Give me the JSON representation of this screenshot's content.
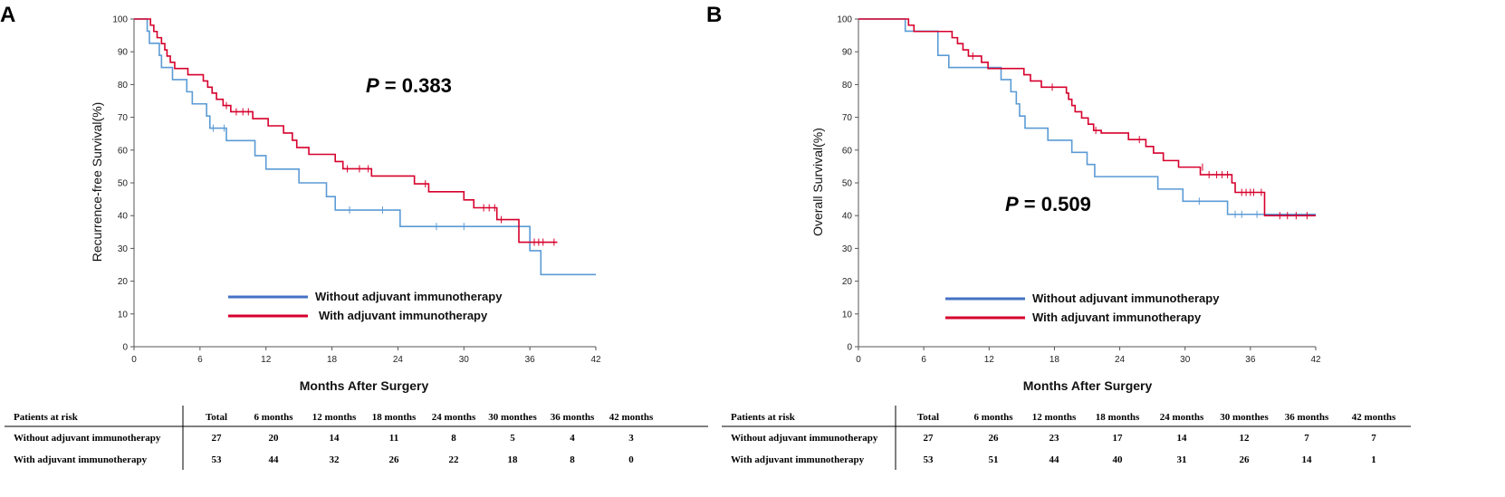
{
  "chart_data": [
    {
      "type": "line",
      "panel_label": "A",
      "title": "",
      "ylabel": "Recurrence-free Survival(%)",
      "xlabel": "Months After Surgery",
      "xlim": [
        0,
        42
      ],
      "ylim": [
        0,
        100
      ],
      "xticks": [
        "0",
        "6",
        "12",
        "18",
        "24",
        "30",
        "36",
        "42"
      ],
      "yticks": [
        "0",
        "10",
        "20",
        "30",
        "40",
        "50",
        "60",
        "70",
        "80",
        "90",
        "100"
      ],
      "annotation": {
        "italic": "P",
        "text": " = 0.383"
      },
      "legend": [
        "Without adjuvant immunotherapy",
        "With adjuvant immunotherapy"
      ],
      "series": [
        {
          "name": "Without adjuvant immunotherapy",
          "color": "#5b9bd5",
          "steps": [
            [
              0,
              100
            ],
            [
              1.2,
              96.3
            ],
            [
              1.4,
              92.6
            ],
            [
              2.3,
              88.9
            ],
            [
              2.5,
              85.2
            ],
            [
              3.5,
              81.5
            ],
            [
              4.8,
              77.8
            ],
            [
              5.3,
              74.1
            ],
            [
              6.6,
              70.4
            ],
            [
              6.9,
              66.7
            ],
            [
              8.4,
              62.9
            ],
            [
              11,
              58.3
            ],
            [
              12,
              54.2
            ],
            [
              15,
              50
            ],
            [
              17.5,
              45.8
            ],
            [
              18.3,
              41.7
            ],
            [
              24.2,
              36.7
            ],
            [
              36,
              29.3
            ],
            [
              37,
              22
            ]
          ],
          "end": 42,
          "censors": [
            [
              7.2,
              66.7
            ],
            [
              8.2,
              66.7
            ],
            [
              19.6,
              41.7
            ],
            [
              22.6,
              41.7
            ],
            [
              27.5,
              36.7
            ],
            [
              30,
              36.7
            ]
          ]
        },
        {
          "name": "With adjuvant immunotherapy",
          "color": "#d6002c",
          "steps": [
            [
              0,
              100
            ],
            [
              1.5,
              98.1
            ],
            [
              1.8,
              96.2
            ],
            [
              2.1,
              94.3
            ],
            [
              2.5,
              92.5
            ],
            [
              2.8,
              90.6
            ],
            [
              3,
              88.7
            ],
            [
              3.3,
              86.8
            ],
            [
              3.7,
              84.9
            ],
            [
              4.9,
              83
            ],
            [
              6.3,
              81.1
            ],
            [
              6.7,
              79.2
            ],
            [
              7.1,
              77.4
            ],
            [
              7.5,
              75.5
            ],
            [
              8.1,
              73.6
            ],
            [
              8.8,
              71.7
            ],
            [
              10.8,
              69.6
            ],
            [
              12.2,
              67.4
            ],
            [
              13.6,
              65.2
            ],
            [
              14.4,
              63
            ],
            [
              14.8,
              60.8
            ],
            [
              15.9,
              58.7
            ],
            [
              18.3,
              56.5
            ],
            [
              19,
              54.3
            ],
            [
              21.6,
              52.1
            ],
            [
              25.5,
              49.7
            ],
            [
              26.8,
              47.3
            ],
            [
              30,
              44.8
            ],
            [
              30.9,
              42.4
            ],
            [
              33,
              38.8
            ],
            [
              35,
              31.9
            ]
          ],
          "end": 38.5,
          "censors": [
            [
              8.4,
              73.6
            ],
            [
              9.3,
              71.7
            ],
            [
              9.9,
              71.7
            ],
            [
              10.4,
              71.7
            ],
            [
              19.4,
              54.3
            ],
            [
              20.5,
              54.3
            ],
            [
              21.3,
              54.3
            ],
            [
              26.5,
              49.7
            ],
            [
              31.8,
              42.4
            ],
            [
              32.3,
              42.4
            ],
            [
              32.8,
              42.4
            ],
            [
              33.4,
              38.8
            ],
            [
              36.4,
              31.9
            ],
            [
              36.8,
              31.9
            ],
            [
              37.2,
              31.9
            ],
            [
              38.2,
              31.9
            ]
          ]
        }
      ],
      "risk_table": {
        "header": [
          "Patients at risk",
          "Total",
          "6 months",
          "12 months",
          "18 months",
          "24 months",
          "30 monthes",
          "36 months",
          "42 months"
        ],
        "rows": [
          [
            "Without adjuvant immunotherapy",
            "27",
            "20",
            "14",
            "11",
            "8",
            "5",
            "4",
            "3"
          ],
          [
            "With adjuvant immunotherapy",
            "53",
            "44",
            "32",
            "26",
            "22",
            "18",
            "8",
            "0"
          ]
        ]
      }
    },
    {
      "type": "line",
      "panel_label": "B",
      "title": "",
      "ylabel": "Overall Survival(%)",
      "xlabel": "Months After Surgery",
      "xlim": [
        0,
        42
      ],
      "ylim": [
        0,
        100
      ],
      "xticks": [
        "0",
        "6",
        "12",
        "18",
        "24",
        "30",
        "36",
        "42"
      ],
      "yticks": [
        "0",
        "10",
        "20",
        "30",
        "40",
        "50",
        "60",
        "70",
        "80",
        "90",
        "100"
      ],
      "annotation": {
        "italic": "P",
        "text": " = 0.509"
      },
      "legend": [
        "Without adjuvant immunotherapy",
        "With adjuvant immunotherapy"
      ],
      "series": [
        {
          "name": "Without adjuvant immunotherapy",
          "color": "#5b9bd5",
          "steps": [
            [
              0,
              100
            ],
            [
              4.3,
              96.3
            ],
            [
              7.3,
              88.9
            ],
            [
              8.3,
              85.2
            ],
            [
              13.1,
              81.5
            ],
            [
              14,
              77.8
            ],
            [
              14.5,
              74.1
            ],
            [
              14.8,
              70.4
            ],
            [
              15.3,
              66.7
            ],
            [
              17.4,
              63
            ],
            [
              19.6,
              59.3
            ],
            [
              21,
              55.6
            ],
            [
              21.7,
              51.9
            ],
            [
              27.5,
              48.1
            ],
            [
              29.8,
              44.4
            ],
            [
              33.9,
              40.4
            ]
          ],
          "end": 42,
          "censors": [
            [
              31.3,
              44.4
            ],
            [
              34.6,
              40.4
            ],
            [
              35.2,
              40.4
            ],
            [
              36.6,
              40.4
            ]
          ]
        },
        {
          "name": "With adjuvant immunotherapy",
          "color": "#d6002c",
          "steps": [
            [
              0,
              100
            ],
            [
              4.6,
              98.1
            ],
            [
              5.1,
              96.2
            ],
            [
              8.6,
              94.3
            ],
            [
              9.1,
              92.5
            ],
            [
              9.6,
              90.6
            ],
            [
              10.1,
              88.7
            ],
            [
              11.3,
              86.8
            ],
            [
              11.9,
              84.9
            ],
            [
              15.2,
              83
            ],
            [
              15.8,
              81.1
            ],
            [
              16.8,
              79.2
            ],
            [
              19.1,
              77.4
            ],
            [
              19.3,
              75.5
            ],
            [
              19.6,
              73.6
            ],
            [
              19.9,
              71.7
            ],
            [
              20.5,
              69.8
            ],
            [
              21.1,
              67.9
            ],
            [
              21.6,
              66
            ],
            [
              22.3,
              65.2
            ],
            [
              24.8,
              63.2
            ],
            [
              26.4,
              61.1
            ],
            [
              27.1,
              59.1
            ],
            [
              28,
              56.8
            ],
            [
              29.4,
              54.8
            ],
            [
              31.4,
              52.5
            ],
            [
              34.3,
              50
            ],
            [
              34.6,
              47.1
            ],
            [
              37.3,
              40
            ]
          ],
          "end": 42,
          "censors": [
            [
              10.5,
              88.7
            ],
            [
              17.8,
              79.2
            ],
            [
              21.8,
              66
            ],
            [
              25.8,
              63.2
            ],
            [
              31.6,
              54.8
            ],
            [
              32.2,
              52.5
            ],
            [
              32.9,
              52.5
            ],
            [
              33.4,
              52.5
            ],
            [
              33.9,
              52.5
            ],
            [
              35.2,
              47.1
            ],
            [
              35.6,
              47.1
            ],
            [
              36,
              47.1
            ],
            [
              36.3,
              47.1
            ],
            [
              37,
              47.1
            ],
            [
              38.7,
              40
            ],
            [
              39.4,
              40
            ],
            [
              40.2,
              40
            ],
            [
              41.2,
              40
            ]
          ]
        }
      ],
      "risk_table": {
        "header": [
          "Patients at risk",
          "Total",
          "6 months",
          "12 months",
          "18 months",
          "24 months",
          "30 monthes",
          "36 months",
          "42 months"
        ],
        "rows": [
          [
            "Without adjuvant immunotherapy",
            "27",
            "26",
            "23",
            "17",
            "14",
            "12",
            "7",
            "7"
          ],
          [
            "With adjuvant immunotherapy",
            "53",
            "51",
            "44",
            "40",
            "31",
            "26",
            "14",
            "1"
          ]
        ]
      }
    }
  ]
}
